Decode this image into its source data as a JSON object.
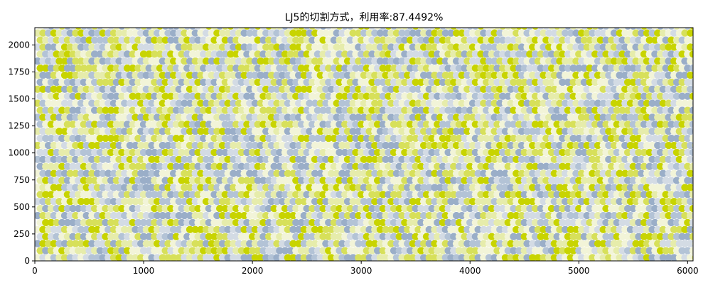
{
  "chart_data": {
    "type": "scatter",
    "title": "LJ5的切割方式，利用率:87.4492%",
    "xlabel": "",
    "ylabel": "",
    "xlim": [
      0,
      6050
    ],
    "ylim": [
      0,
      2160
    ],
    "xticks": [
      0,
      1000,
      2000,
      3000,
      4000,
      5000,
      6000
    ],
    "yticks": [
      0,
      250,
      500,
      750,
      1000,
      1250,
      1500,
      1750,
      2000
    ],
    "grid": false,
    "legend": "none",
    "pattern": {
      "description_of_marks": "densely packed circular pieces tiled over the sheet",
      "column_pitch": 50,
      "row_pitch": 65,
      "x_start": 25,
      "y_start": 30,
      "colors": [
        "#c8d400",
        "#d7e05a",
        "#e6ecab",
        "#f2f4d8",
        "#9aaec8",
        "#b3c3d6",
        "#d3dbe4"
      ]
    }
  }
}
